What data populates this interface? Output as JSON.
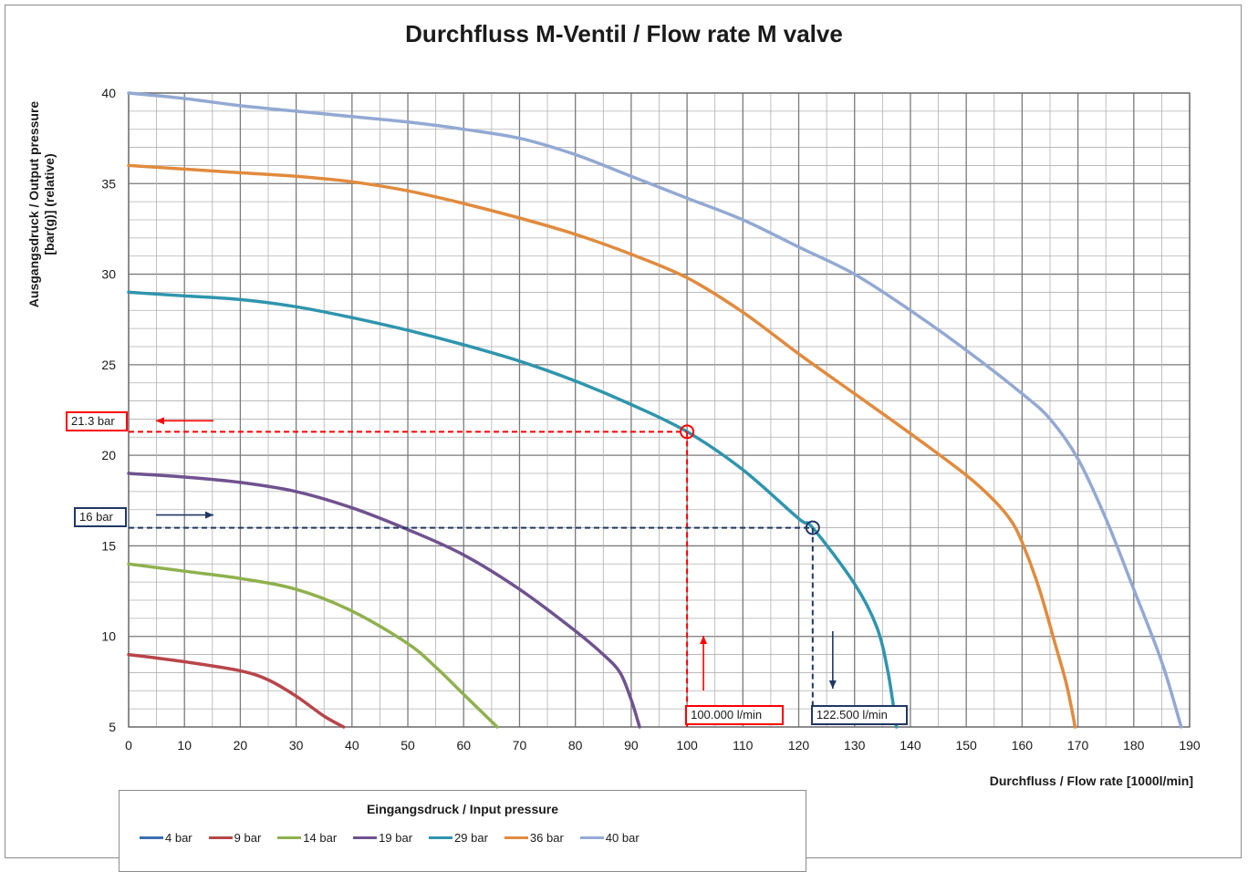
{
  "chart_data": {
    "type": "line",
    "title": "Durchfluss M-Ventil / Flow rate M valve",
    "ylabel_line1": "Ausgangsdruck / Output pressure",
    "ylabel_line2": "[bar(g)] (relative)",
    "xlabel": "Durchfluss / Flow rate [1000l/min]",
    "xlim": [
      0,
      190
    ],
    "ylim": [
      5,
      40
    ],
    "x_ticks": [
      0,
      10,
      20,
      30,
      40,
      50,
      60,
      70,
      80,
      90,
      100,
      110,
      120,
      130,
      140,
      150,
      160,
      170,
      180,
      190
    ],
    "y_ticks": [
      5,
      10,
      15,
      20,
      25,
      30,
      35,
      40
    ],
    "grid": true,
    "legend_title": "Eingangsdruck / Input pressure",
    "legend_position": "bottom",
    "series": [
      {
        "name": "4 bar",
        "color": "#3b6fb0",
        "points": []
      },
      {
        "name": "9 bar",
        "color": "#b8454a",
        "points": [
          [
            0,
            9
          ],
          [
            10,
            8.6
          ],
          [
            20,
            8.1
          ],
          [
            25,
            7.6
          ],
          [
            30,
            6.7
          ],
          [
            35,
            5.6
          ],
          [
            38.5,
            5
          ]
        ]
      },
      {
        "name": "14 bar",
        "color": "#8fb14e",
        "points": [
          [
            0,
            14
          ],
          [
            10,
            13.6
          ],
          [
            20,
            13.2
          ],
          [
            30,
            12.6
          ],
          [
            40,
            11.4
          ],
          [
            50,
            9.6
          ],
          [
            55,
            8.3
          ],
          [
            60,
            6.8
          ],
          [
            66,
            5
          ]
        ]
      },
      {
        "name": "19 bar",
        "color": "#6f528f",
        "points": [
          [
            0,
            19
          ],
          [
            10,
            18.8
          ],
          [
            20,
            18.5
          ],
          [
            30,
            18
          ],
          [
            40,
            17.1
          ],
          [
            50,
            15.9
          ],
          [
            60,
            14.5
          ],
          [
            70,
            12.6
          ],
          [
            80,
            10.3
          ],
          [
            85,
            9
          ],
          [
            88,
            8
          ],
          [
            90,
            6.5
          ],
          [
            91.5,
            5
          ]
        ]
      },
      {
        "name": "29 bar",
        "color": "#2f95ad",
        "points": [
          [
            0,
            29
          ],
          [
            10,
            28.8
          ],
          [
            20,
            28.6
          ],
          [
            30,
            28.2
          ],
          [
            40,
            27.6
          ],
          [
            50,
            26.9
          ],
          [
            60,
            26.1
          ],
          [
            70,
            25.2
          ],
          [
            80,
            24.1
          ],
          [
            90,
            22.8
          ],
          [
            100,
            21.3
          ],
          [
            110,
            19.2
          ],
          [
            120,
            16.5
          ],
          [
            122.5,
            16
          ],
          [
            130,
            12.9
          ],
          [
            134,
            10.5
          ],
          [
            136,
            8
          ],
          [
            137.5,
            5
          ]
        ]
      },
      {
        "name": "36 bar",
        "color": "#e18b3e",
        "points": [
          [
            0,
            36
          ],
          [
            10,
            35.8
          ],
          [
            20,
            35.6
          ],
          [
            30,
            35.4
          ],
          [
            40,
            35.1
          ],
          [
            50,
            34.6
          ],
          [
            60,
            33.9
          ],
          [
            70,
            33.1
          ],
          [
            80,
            32.2
          ],
          [
            90,
            31.1
          ],
          [
            100,
            29.8
          ],
          [
            110,
            27.9
          ],
          [
            120,
            25.6
          ],
          [
            130,
            23.4
          ],
          [
            140,
            21.2
          ],
          [
            150,
            18.9
          ],
          [
            155,
            17.5
          ],
          [
            158,
            16.4
          ],
          [
            160,
            15.2
          ],
          [
            163,
            12.7
          ],
          [
            166,
            9.5
          ],
          [
            168,
            7.3
          ],
          [
            169.5,
            5
          ]
        ]
      },
      {
        "name": "40 bar",
        "color": "#93a9d3",
        "points": [
          [
            0,
            40
          ],
          [
            10,
            39.7
          ],
          [
            20,
            39.3
          ],
          [
            30,
            39
          ],
          [
            40,
            38.7
          ],
          [
            50,
            38.4
          ],
          [
            60,
            38
          ],
          [
            70,
            37.5
          ],
          [
            80,
            36.6
          ],
          [
            90,
            35.4
          ],
          [
            100,
            34.2
          ],
          [
            110,
            33
          ],
          [
            120,
            31.5
          ],
          [
            130,
            30
          ],
          [
            140,
            28
          ],
          [
            150,
            25.8
          ],
          [
            160,
            23.4
          ],
          [
            165,
            22
          ],
          [
            170,
            19.8
          ],
          [
            175,
            16.5
          ],
          [
            180,
            12.6
          ],
          [
            185,
            8.6
          ],
          [
            188.5,
            5
          ]
        ]
      }
    ],
    "annotations": [
      {
        "label": "21.3 bar",
        "x": 100,
        "y": 21.3,
        "color": "#ff0000",
        "flow_label": "100.000 l/min"
      },
      {
        "label": "16 bar",
        "x": 122.5,
        "y": 16,
        "color": "#1f3864",
        "flow_label": "122.500 l/min"
      }
    ]
  }
}
